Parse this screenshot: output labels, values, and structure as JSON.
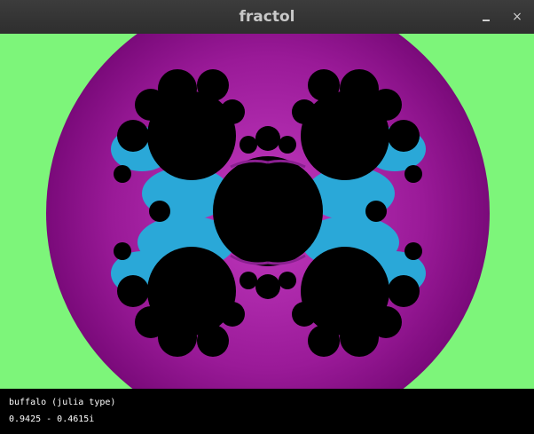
{
  "window": {
    "title": "fractol"
  },
  "controls": {
    "minimize_icon": "minimize-icon",
    "close_icon": "close-icon",
    "close_glyph": "×"
  },
  "fractal": {
    "colors": {
      "background": "#7df57a",
      "outer_disk": "#a01f9e",
      "outer_disk_edge": "#7a0a7a",
      "set": "#000000",
      "filament_cyan": "#2aa8d8",
      "filament_purple": "#8a2090"
    }
  },
  "info": {
    "fractal_name": "buffalo (julia type)",
    "parameter": "0.9425 - 0.4615i"
  }
}
